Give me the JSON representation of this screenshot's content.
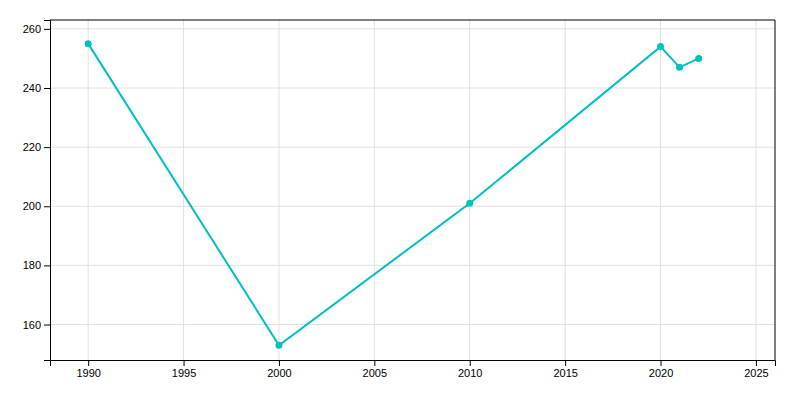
{
  "chart_data": {
    "type": "line",
    "x": [
      1990,
      2000,
      2010,
      2020,
      2021,
      2022
    ],
    "values": [
      255,
      153,
      201,
      254,
      247,
      250
    ],
    "color": "#00C0C0",
    "marker": "circle",
    "xlim": [
      1988,
      2026
    ],
    "ylim": [
      148,
      263
    ],
    "xticks": [
      1990,
      1995,
      2000,
      2005,
      2010,
      2015,
      2020,
      2025
    ],
    "yticks": [
      160,
      180,
      200,
      220,
      240,
      260
    ],
    "grid": true
  }
}
